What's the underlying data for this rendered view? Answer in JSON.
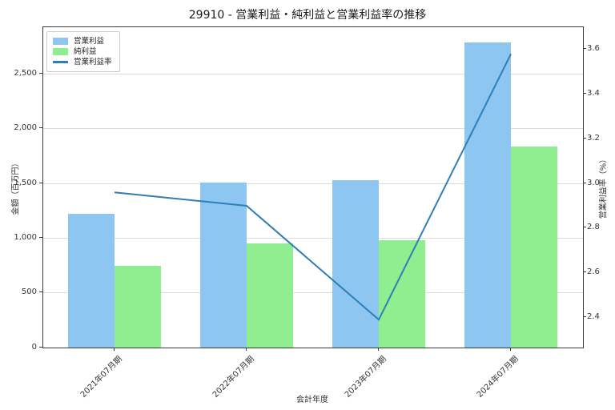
{
  "title": "29910 - 営業利益・純利益と営業利益率の推移",
  "colors": {
    "operating_profit_bar": "#8dc6f0",
    "net_profit_bar": "#90ee90",
    "operating_margin_line": "#2e7eb8",
    "grid": "#dcdcdc",
    "spine": "#3a3a3a"
  },
  "chart_data": {
    "type": "bar",
    "subtype": "grouped bars with secondary-axis line",
    "title": "29910 - 営業利益・純利益と営業利益率の推移",
    "categories": [
      "2021年07月期",
      "2022年07月期",
      "2023年07月期",
      "2024年07月期"
    ],
    "series": [
      {
        "name": "営業利益",
        "type": "bar",
        "axis": "left",
        "color": "#8dc6f0",
        "values": [
          1225,
          1510,
          1530,
          2790
        ]
      },
      {
        "name": "純利益",
        "type": "bar",
        "axis": "left",
        "color": "#90ee90",
        "values": [
          750,
          955,
          985,
          1840
        ]
      },
      {
        "name": "営業利益率",
        "type": "line",
        "axis": "right",
        "color": "#2e7eb8",
        "values": [
          2.96,
          2.9,
          2.39,
          3.58
        ]
      }
    ],
    "xlabel": "会計年度",
    "ylabel_left": "金額（百万円）",
    "ylabel_right": "営業利益率（%）",
    "y_left_ticks": [
      "0",
      "500",
      "1,000",
      "1,500",
      "2,000",
      "2,500"
    ],
    "y_left_tick_values": [
      0,
      500,
      1000,
      1500,
      2000,
      2500
    ],
    "ylim_left": [
      0,
      2930
    ],
    "y_right_ticks": [
      "2.4",
      "2.6",
      "2.8",
      "3.0",
      "3.2",
      "3.4",
      "3.6"
    ],
    "y_right_tick_values": [
      2.4,
      2.6,
      2.8,
      3.0,
      3.2,
      3.4,
      3.6
    ],
    "ylim_right": [
      2.265,
      3.7
    ],
    "grid": "horizontal",
    "legend_position": "upper left"
  }
}
